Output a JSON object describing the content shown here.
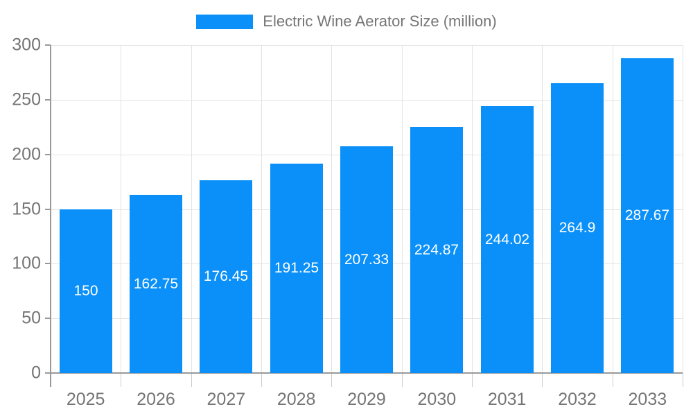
{
  "chart_data": {
    "type": "bar",
    "title": "Electric Wine Aerator Size (million)",
    "categories": [
      "2025",
      "2026",
      "2027",
      "2028",
      "2029",
      "2030",
      "2031",
      "2032",
      "2033"
    ],
    "values": [
      150,
      162.75,
      176.45,
      191.25,
      207.33,
      224.87,
      244.02,
      264.9,
      287.67
    ],
    "value_labels": [
      "150",
      "162.75",
      "176.45",
      "191.25",
      "207.33",
      "224.87",
      "244.02",
      "264.9",
      "287.67"
    ],
    "xlabel": "",
    "ylabel": "",
    "ylim": [
      0,
      300
    ],
    "yticks": [
      0,
      50,
      100,
      150,
      200,
      250,
      300
    ],
    "grid": "on",
    "legend_position": "top-center",
    "colors": {
      "bar": "#0a90f8",
      "axis": "#999999",
      "grid": "#e3e3e3",
      "tick_text": "#757575",
      "value_text": "#ffffff",
      "background": "#ffffff"
    }
  }
}
